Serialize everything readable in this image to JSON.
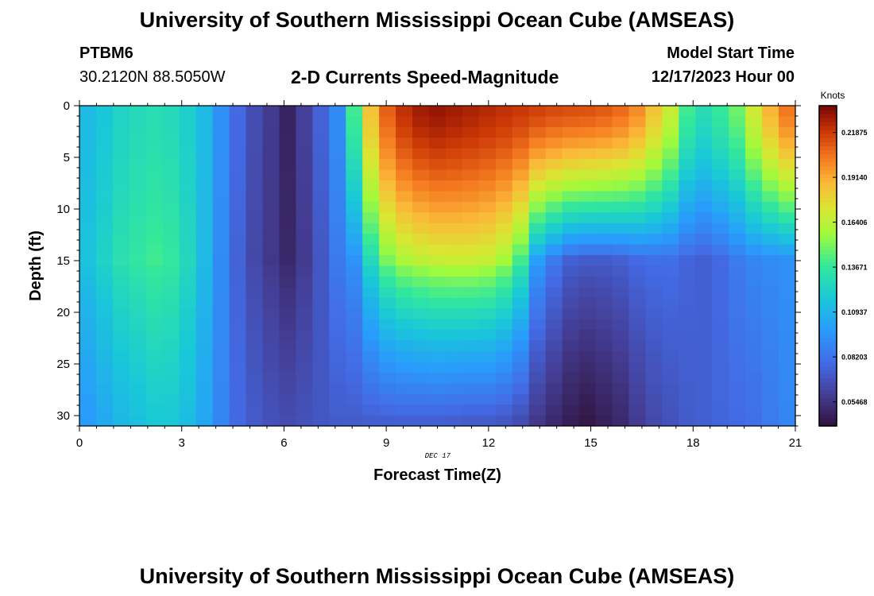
{
  "header": {
    "title": "University of Southern Mississippi Ocean Cube (AMSEAS)",
    "station_id": "PTBM6",
    "station_coords": "30.2120N  88.5050W",
    "subtitle": "2-D Currents Speed-Magnitude",
    "model_start_label": "Model Start Time",
    "model_start_value": "12/17/2023 Hour 00"
  },
  "footer": {
    "title": "University of Southern Mississippi Ocean Cube (AMSEAS)"
  },
  "colors": {
    "accent": "#000000"
  },
  "chart_data": {
    "type": "heatmap",
    "title": "2-D Currents Speed-Magnitude",
    "xlabel": "Forecast Time(Z)",
    "ylabel": "Depth (ft)",
    "date_annotation": "DEC 17",
    "xlim": [
      0,
      21
    ],
    "ylim": [
      31,
      0
    ],
    "x_ticks": [
      0,
      3,
      6,
      9,
      12,
      15,
      18,
      21
    ],
    "y_ticks": [
      0,
      5,
      10,
      15,
      20,
      25,
      30
    ],
    "colorbar": {
      "label": "Knots",
      "vmin": 0.04,
      "vmax": 0.235,
      "ticks": [
        "0.21875",
        "0.19140",
        "0.16406",
        "0.13671",
        "0.10937",
        "0.08203",
        "0.05468"
      ]
    },
    "columns_hours": [
      0,
      0.5,
      1,
      1.5,
      2,
      2.5,
      3,
      3.5,
      4,
      4.5,
      5,
      5.5,
      6,
      6.5,
      7,
      7.5,
      8,
      8.5,
      9,
      9.5,
      10,
      10.5,
      11,
      11.5,
      12,
      12.5,
      13,
      13.5,
      14,
      14.5,
      15,
      15.5,
      16,
      16.5,
      17,
      17.5,
      18,
      18.5,
      19,
      19.5,
      20,
      20.5,
      21
    ],
    "surface_speed_knots": [
      0.112,
      0.118,
      0.124,
      0.128,
      0.13,
      0.128,
      0.122,
      0.112,
      0.094,
      0.078,
      0.066,
      0.058,
      0.048,
      0.06,
      0.075,
      0.092,
      0.14,
      0.185,
      0.21,
      0.222,
      0.228,
      0.23,
      0.228,
      0.226,
      0.224,
      0.222,
      0.22,
      0.218,
      0.216,
      0.215,
      0.214,
      0.212,
      0.208,
      0.2,
      0.185,
      0.168,
      0.14,
      0.13,
      0.138,
      0.148,
      0.17,
      0.19,
      0.205
    ],
    "mid_speed_knots_15ft": [
      0.116,
      0.124,
      0.132,
      0.136,
      0.14,
      0.137,
      0.127,
      0.112,
      0.092,
      0.075,
      0.064,
      0.057,
      0.05,
      0.058,
      0.07,
      0.085,
      0.095,
      0.128,
      0.15,
      0.16,
      0.164,
      0.167,
      0.168,
      0.168,
      0.166,
      0.158,
      0.14,
      0.1,
      0.085,
      0.074,
      0.072,
      0.072,
      0.074,
      0.078,
      0.08,
      0.08,
      0.076,
      0.074,
      0.078,
      0.085,
      0.09,
      0.092,
      0.094
    ],
    "bottom_speed_knots_30ft": [
      0.098,
      0.104,
      0.11,
      0.114,
      0.118,
      0.118,
      0.113,
      0.103,
      0.09,
      0.078,
      0.072,
      0.068,
      0.066,
      0.068,
      0.07,
      0.072,
      0.072,
      0.072,
      0.072,
      0.072,
      0.072,
      0.072,
      0.071,
      0.07,
      0.07,
      0.068,
      0.064,
      0.056,
      0.05,
      0.045,
      0.042,
      0.046,
      0.05,
      0.058,
      0.064,
      0.068,
      0.072,
      0.074,
      0.076,
      0.078,
      0.08,
      0.085,
      0.09
    ]
  }
}
